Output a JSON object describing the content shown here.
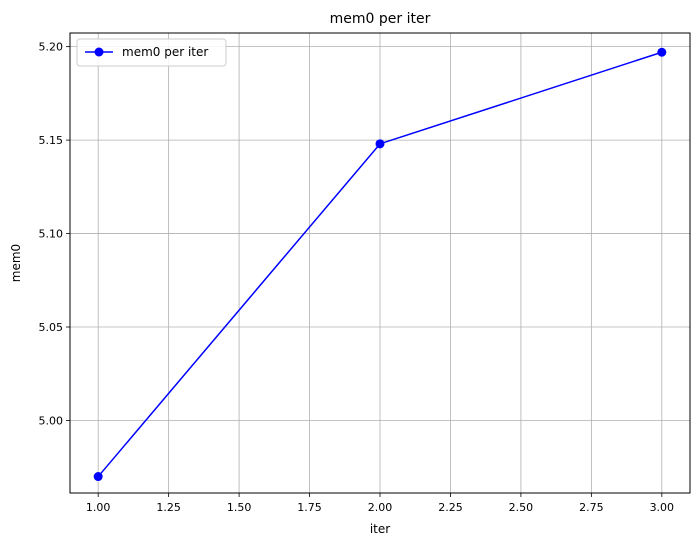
{
  "chart_data": {
    "type": "line",
    "title": "mem0 per iter",
    "xlabel": "iter",
    "ylabel": "mem0",
    "xlim": [
      0.9,
      3.1
    ],
    "ylim": [
      4.9612,
      5.2073
    ],
    "xticks": [
      1.0,
      1.25,
      1.5,
      1.75,
      2.0,
      2.25,
      2.5,
      2.75,
      3.0
    ],
    "xtick_labels": [
      "1.00",
      "1.25",
      "1.50",
      "1.75",
      "2.00",
      "2.25",
      "2.50",
      "2.75",
      "3.00"
    ],
    "yticks": [
      5.0,
      5.05,
      5.1,
      5.15,
      5.2
    ],
    "ytick_labels": [
      "5.00",
      "5.05",
      "5.10",
      "5.15",
      "5.20"
    ],
    "grid": true,
    "legend_position": "top-left",
    "series": [
      {
        "name": "mem0 per iter",
        "color": "#0000ff",
        "marker": "circle",
        "x": [
          1,
          2,
          3
        ],
        "y": [
          4.97,
          5.148,
          5.197
        ]
      }
    ]
  }
}
